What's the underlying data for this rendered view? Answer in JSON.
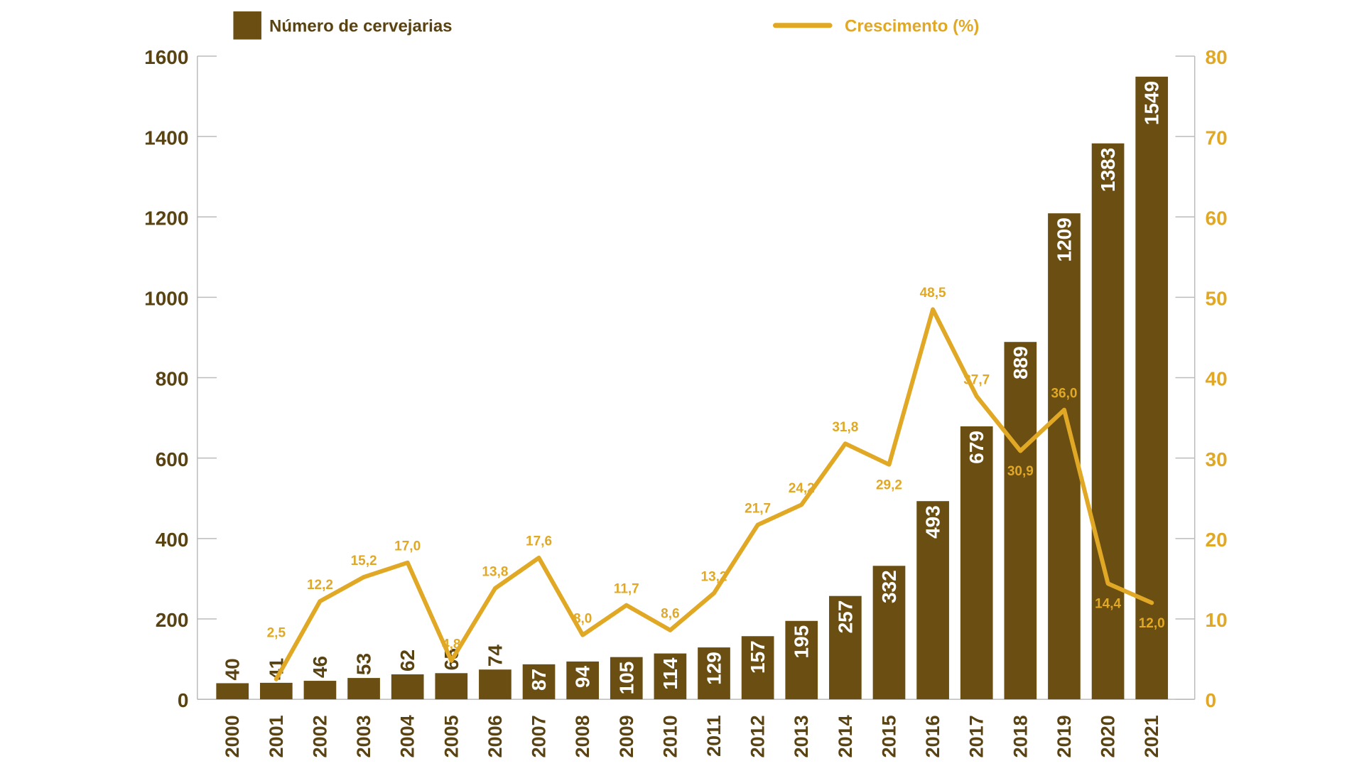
{
  "chart_data": {
    "type": "bar+line",
    "categories": [
      "2000",
      "2001",
      "2002",
      "2003",
      "2004",
      "2005",
      "2006",
      "2007",
      "2008",
      "2009",
      "2010",
      "2011",
      "2012",
      "2013",
      "2014",
      "2015",
      "2016",
      "2017",
      "2018",
      "2019",
      "2020",
      "2021"
    ],
    "series": [
      {
        "name": "Número de cervejarias",
        "type": "bar",
        "axis": "left",
        "color": "#6b4e12",
        "values": [
          40,
          41,
          46,
          53,
          62,
          65,
          74,
          87,
          94,
          105,
          114,
          129,
          157,
          195,
          257,
          332,
          493,
          679,
          889,
          1209,
          1383,
          1549
        ],
        "labels": [
          "40",
          "41",
          "46",
          "53",
          "62",
          "65",
          "74",
          "87",
          "94",
          "105",
          "114",
          "129",
          "157",
          "195",
          "257",
          "332",
          "493",
          "679",
          "889",
          "1209",
          "1383",
          "1549"
        ]
      },
      {
        "name": "Crescimento (%)",
        "type": "line",
        "axis": "right",
        "color": "#e0a824",
        "values": [
          null,
          2.5,
          12.2,
          15.2,
          17.0,
          4.8,
          13.8,
          17.6,
          8.0,
          11.7,
          8.6,
          13.2,
          21.7,
          24.2,
          31.8,
          29.2,
          48.5,
          37.7,
          30.9,
          36.0,
          14.4,
          12.0
        ],
        "labels": [
          "",
          "2,5",
          "12,2",
          "15,2",
          "17,0",
          "4,8",
          "13,8",
          "17,6",
          "8,0",
          "11,7",
          "8,6",
          "13,2",
          "21,7",
          "24,2",
          "31,8",
          "29,2",
          "48,5",
          "37,7",
          "30,9",
          "36,0",
          "14,4",
          "12,0"
        ]
      }
    ],
    "y_left": {
      "min": 0,
      "max": 1600,
      "ticks": [
        0,
        200,
        400,
        600,
        800,
        1000,
        1200,
        1400,
        1600
      ]
    },
    "y_right": {
      "min": 0,
      "max": 80,
      "ticks": [
        0,
        10,
        20,
        30,
        40,
        50,
        60,
        70,
        80
      ]
    },
    "legend_position": "top",
    "grid": false,
    "title": "",
    "xlabel": "",
    "ylabel": "",
    "colors": {
      "axis_left_text": "#5a4312",
      "axis_right_text": "#e0a824",
      "axis_line": "#bbbbbb",
      "bar_label": "#ffffff",
      "bar_label_outside": "#5a4312"
    }
  }
}
